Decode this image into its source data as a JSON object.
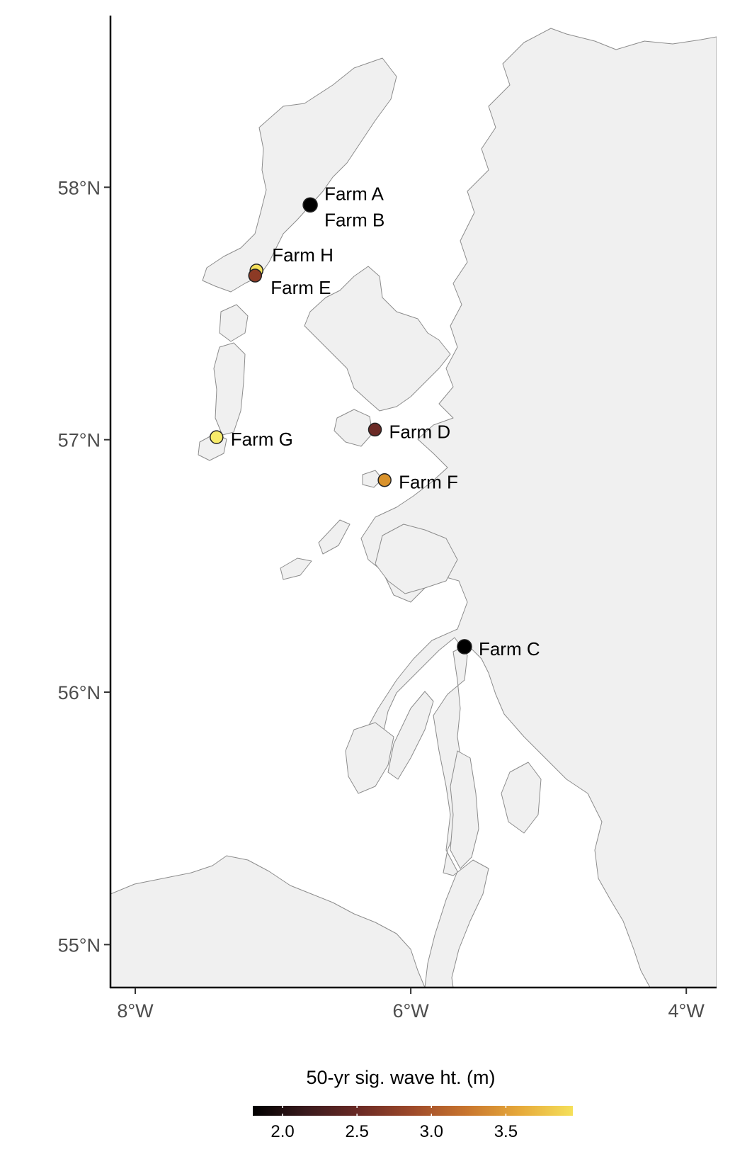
{
  "map": {
    "y_axis": {
      "ticks": [
        {
          "lat": 58,
          "label": "58°N"
        },
        {
          "lat": 57,
          "label": "57°N"
        },
        {
          "lat": 56,
          "label": "56°N"
        },
        {
          "lat": 55,
          "label": "55°N"
        }
      ]
    },
    "x_axis": {
      "ticks": [
        {
          "lon": -8,
          "label": "8°W"
        },
        {
          "lon": -6,
          "label": "6°W"
        },
        {
          "lon": -4,
          "label": "4°W"
        }
      ]
    },
    "extent": {
      "lon_min": -8.18,
      "lon_max": -3.78,
      "lat_min": 54.83,
      "lat_max": 58.68
    },
    "land_color": "#f0f0f0",
    "coast_color": "#8c8c8c"
  },
  "farms": [
    {
      "name": "Farm A",
      "lon": -6.73,
      "lat": 57.93,
      "wave_ht": 1.8,
      "color": "#000000"
    },
    {
      "name": "Farm B",
      "lon": -6.73,
      "lat": 57.93,
      "wave_ht": 1.8,
      "color": "#000000"
    },
    {
      "name": "Farm H",
      "lon": -7.12,
      "lat": 57.67,
      "wave_ht": 3.8,
      "color": "#f5e05a"
    },
    {
      "name": "Farm E",
      "lon": -7.13,
      "lat": 57.65,
      "wave_ht": 2.6,
      "color": "#8c3a25"
    },
    {
      "name": "Farm D",
      "lon": -6.26,
      "lat": 57.04,
      "wave_ht": 2.4,
      "color": "#6b2a25"
    },
    {
      "name": "Farm G",
      "lon": -7.41,
      "lat": 57.01,
      "wave_ht": 3.9,
      "color": "#f8ec6a"
    },
    {
      "name": "Farm F",
      "lon": -6.19,
      "lat": 56.84,
      "wave_ht": 3.1,
      "color": "#d9922b"
    },
    {
      "name": "Farm C",
      "lon": -5.61,
      "lat": 56.18,
      "wave_ht": 1.8,
      "color": "#000000"
    }
  ],
  "legend": {
    "title": "50-yr sig. wave ht. (m)",
    "min": 1.8,
    "max": 3.95,
    "gradient_colors": [
      "#000000",
      "#3a1a1d",
      "#6b2a25",
      "#9e4a2a",
      "#c8752e",
      "#e6a93a",
      "#f5e05a"
    ],
    "ticks": [
      {
        "value": 2.0,
        "label": "2.0"
      },
      {
        "value": 2.5,
        "label": "2.5"
      },
      {
        "value": 3.0,
        "label": "3.0"
      },
      {
        "value": 3.5,
        "label": "3.5"
      }
    ]
  }
}
